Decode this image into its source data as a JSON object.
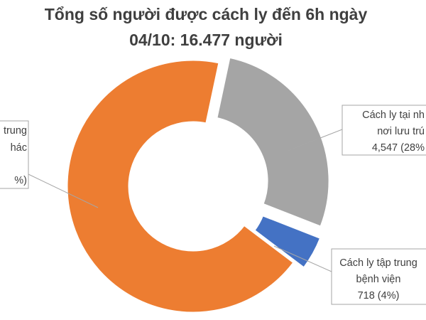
{
  "chart_data": {
    "type": "pie",
    "title": [
      "Tổng số người được cách ly đến 6h ngày",
      "04/10: 16.477 người"
    ],
    "categories": [
      [
        "Cách ly tại nh",
        "nơi lưu trú"
      ],
      [
        "Cách ly tập trung",
        "bệnh viện"
      ],
      [
        "trung",
        "hác"
      ]
    ],
    "values": [
      4547,
      718,
      11212
    ],
    "value_labels": [
      "4,547 (28%",
      "718 (4%)",
      "%)"
    ],
    "colors": [
      "#a5a5a5",
      "#4472c4",
      "#ed7d31"
    ]
  }
}
